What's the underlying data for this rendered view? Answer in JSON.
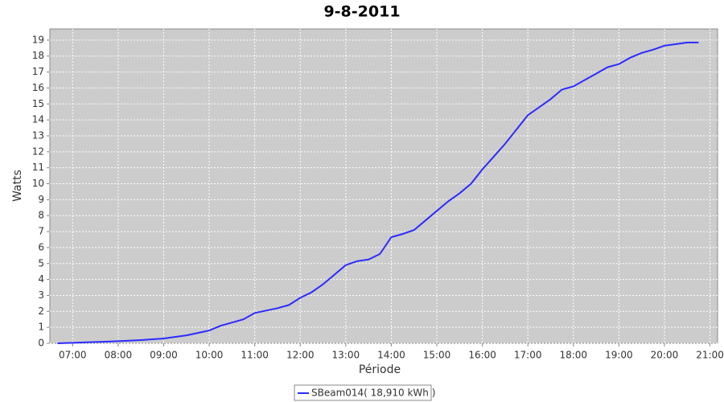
{
  "chart_data": {
    "type": "line",
    "title": "9-8-2011",
    "x_label": "Période",
    "y_label": "Watts",
    "x": [
      "06:40",
      "07:00",
      "07:30",
      "08:00",
      "08:30",
      "09:00",
      "09:30",
      "10:00",
      "10:15",
      "10:30",
      "10:45",
      "11:00",
      "11:15",
      "11:30",
      "11:45",
      "12:00",
      "12:15",
      "12:30",
      "12:45",
      "13:00",
      "13:15",
      "13:30",
      "13:45",
      "14:00",
      "14:15",
      "14:30",
      "14:45",
      "15:00",
      "15:15",
      "15:30",
      "15:45",
      "16:00",
      "16:15",
      "16:30",
      "16:45",
      "17:00",
      "17:15",
      "17:30",
      "17:45",
      "18:00",
      "18:15",
      "18:30",
      "18:45",
      "19:00",
      "19:15",
      "19:30",
      "19:45",
      "20:00",
      "20:15",
      "20:30",
      "20:45"
    ],
    "series": [
      {
        "name": "SBeam014( 18,910 kWh )",
        "color": "#2b2bff",
        "values": [
          0.0,
          0.03,
          0.08,
          0.13,
          0.2,
          0.3,
          0.5,
          0.8,
          1.1,
          1.3,
          1.5,
          1.9,
          2.05,
          2.2,
          2.4,
          2.85,
          3.2,
          3.7,
          4.3,
          4.9,
          5.15,
          5.25,
          5.6,
          6.65,
          6.85,
          7.1,
          7.7,
          8.3,
          8.9,
          9.4,
          10.0,
          10.9,
          11.7,
          12.5,
          13.4,
          14.3,
          14.8,
          15.3,
          15.9,
          16.1,
          16.5,
          16.9,
          17.3,
          17.5,
          17.9,
          18.2,
          18.4,
          18.65,
          18.75,
          18.85,
          18.85
        ]
      }
    ],
    "xlim": [
      "06:30",
      "21:10"
    ],
    "xticks": [
      "07:00",
      "08:00",
      "09:00",
      "10:00",
      "11:00",
      "12:00",
      "13:00",
      "14:00",
      "15:00",
      "16:00",
      "17:00",
      "18:00",
      "19:00",
      "20:00",
      "21:00"
    ],
    "ylim": [
      0,
      19.7
    ],
    "yticks": [
      0,
      1,
      2,
      3,
      4,
      5,
      6,
      7,
      8,
      9,
      10,
      11,
      12,
      13,
      14,
      15,
      16,
      17,
      18,
      19
    ],
    "grid": true,
    "legend": "bottom"
  }
}
